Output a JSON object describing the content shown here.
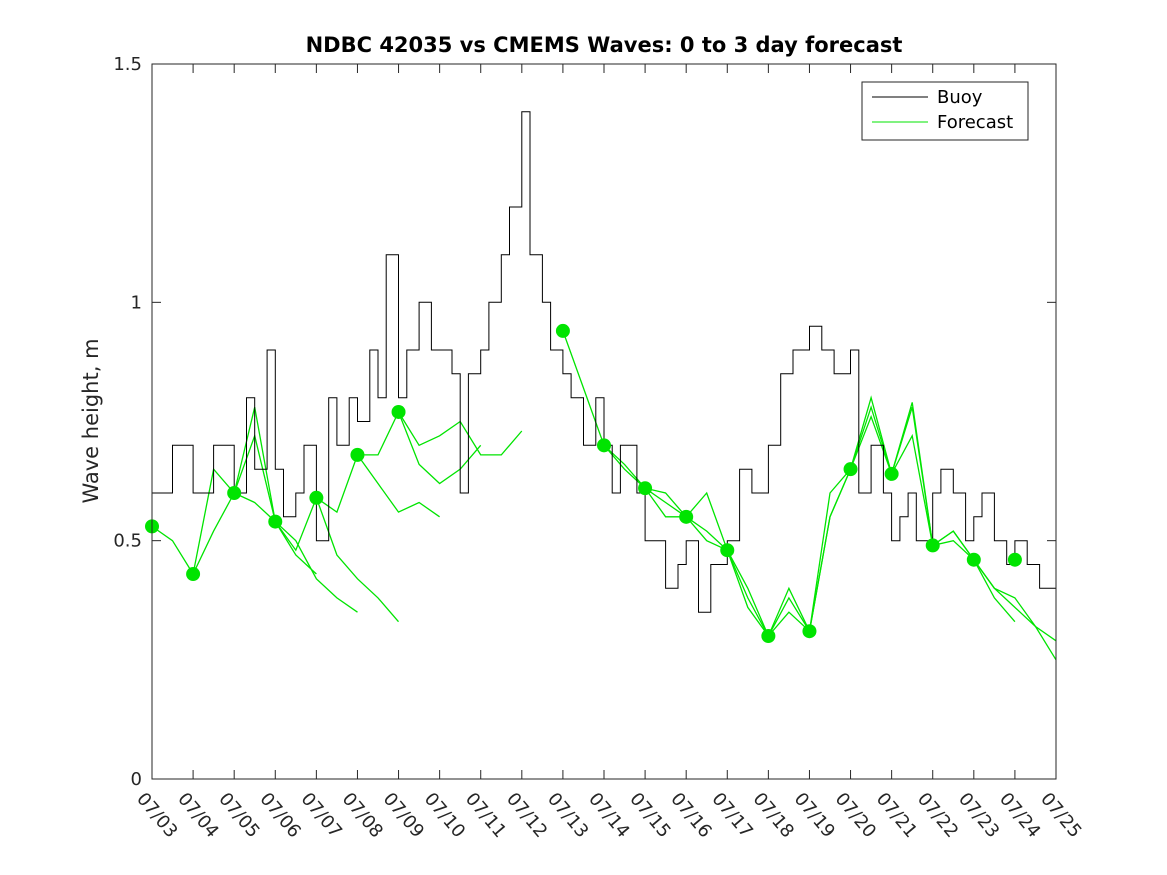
{
  "chart_data": {
    "type": "line",
    "title": "NDBC 42035 vs CMEMS Waves: 0 to 3 day forecast",
    "xlabel": "",
    "ylabel": "Wave height, m",
    "xlim": [
      "07/03",
      "07/25"
    ],
    "ylim": [
      0,
      1.5
    ],
    "yticks": [
      0,
      0.5,
      1,
      1.5
    ],
    "ytick_labels": [
      "0",
      "0.5",
      "1",
      "1.5"
    ],
    "xtick_labels": [
      "07/03",
      "07/04",
      "07/05",
      "07/06",
      "07/07",
      "07/08",
      "07/09",
      "07/10",
      "07/11",
      "07/12",
      "07/13",
      "07/14",
      "07/15",
      "07/16",
      "07/17",
      "07/18",
      "07/19",
      "07/20",
      "07/21",
      "07/22",
      "07/23",
      "07/24",
      "07/25"
    ],
    "grid": false,
    "legend": {
      "position": "top-right",
      "entries": [
        "Buoy",
        "Forecast"
      ]
    },
    "colors": {
      "buoy": "#000000",
      "forecast": "#00e400",
      "axis": "#262626"
    },
    "buoy": {
      "name": "Buoy",
      "x": [
        0,
        0.5,
        1,
        1.5,
        2,
        2.3,
        2.5,
        2.8,
        3,
        3.2,
        3.5,
        3.7,
        4,
        4.3,
        4.5,
        4.8,
        5,
        5.3,
        5.5,
        5.7,
        6,
        6.2,
        6.5,
        6.8,
        7,
        7.3,
        7.5,
        7.7,
        8,
        8.2,
        8.5,
        8.7,
        9,
        9.2,
        9.5,
        9.7,
        10,
        10.2,
        10.5,
        10.8,
        11,
        11.2,
        11.4,
        11.6,
        11.8,
        12,
        12.3,
        12.5,
        12.8,
        13,
        13.3,
        13.6,
        14,
        14.3,
        14.6,
        15,
        15.3,
        15.6,
        16,
        16.3,
        16.6,
        17,
        17.2,
        17.5,
        17.8,
        18,
        18.2,
        18.4,
        18.6,
        18.8,
        19,
        19.2,
        19.5,
        19.8,
        20,
        20.2,
        20.5,
        20.8,
        21,
        21.3,
        21.6,
        22
      ],
      "y": [
        0.6,
        0.7,
        0.6,
        0.7,
        0.6,
        0.8,
        0.65,
        0.9,
        0.65,
        0.55,
        0.6,
        0.7,
        0.5,
        0.8,
        0.7,
        0.8,
        0.75,
        0.9,
        0.8,
        1.1,
        0.8,
        0.9,
        1.0,
        0.9,
        0.9,
        0.85,
        0.6,
        0.85,
        0.9,
        1.0,
        1.1,
        1.2,
        1.4,
        1.1,
        1.0,
        0.9,
        0.85,
        0.8,
        0.7,
        0.8,
        0.7,
        0.6,
        0.7,
        0.7,
        0.6,
        0.5,
        0.5,
        0.4,
        0.45,
        0.5,
        0.35,
        0.45,
        0.5,
        0.65,
        0.6,
        0.7,
        0.85,
        0.9,
        0.95,
        0.9,
        0.85,
        0.9,
        0.6,
        0.7,
        0.6,
        0.5,
        0.55,
        0.6,
        0.5,
        0.5,
        0.6,
        0.65,
        0.6,
        0.5,
        0.55,
        0.6,
        0.5,
        0.45,
        0.5,
        0.45,
        0.4,
        0.4
      ]
    },
    "forecast_markers": {
      "name": "Forecast analysis points",
      "x": [
        0,
        1,
        2,
        3,
        4,
        5,
        6,
        10,
        11,
        12,
        13,
        14,
        15,
        16,
        17,
        18,
        19,
        20,
        21
      ],
      "y": [
        0.53,
        0.43,
        0.6,
        0.54,
        0.59,
        0.68,
        0.77,
        0.94,
        0.7,
        0.61,
        0.55,
        0.48,
        0.3,
        0.31,
        0.65,
        0.64,
        0.49,
        0.46,
        0.46
      ]
    },
    "forecast": [
      {
        "name": "",
        "x": [
          0,
          0.5,
          1,
          1.5,
          2,
          2.5,
          3
        ],
        "y": [
          0.53,
          0.5,
          0.43,
          0.52,
          0.6,
          0.58,
          0.54
        ]
      },
      {
        "name": "",
        "x": [
          1,
          1.5,
          2,
          2.5,
          3,
          3.5,
          4
        ],
        "y": [
          0.43,
          0.65,
          0.6,
          0.72,
          0.54,
          0.47,
          0.43
        ]
      },
      {
        "name": "",
        "x": [
          2,
          2.5,
          3,
          3.5,
          4,
          4.5,
          5
        ],
        "y": [
          0.6,
          0.78,
          0.54,
          0.5,
          0.42,
          0.38,
          0.35
        ]
      },
      {
        "name": "",
        "x": [
          3,
          3.5,
          4,
          4.5,
          5,
          5.5,
          6
        ],
        "y": [
          0.54,
          0.48,
          0.59,
          0.47,
          0.42,
          0.38,
          0.33
        ]
      },
      {
        "name": "",
        "x": [
          4,
          4.5,
          5,
          5.5,
          6,
          6.5,
          7
        ],
        "y": [
          0.59,
          0.56,
          0.68,
          0.62,
          0.56,
          0.58,
          0.55
        ]
      },
      {
        "name": "",
        "x": [
          5,
          5.5,
          6,
          6.5,
          7,
          7.5,
          8
        ],
        "y": [
          0.68,
          0.68,
          0.77,
          0.66,
          0.62,
          0.65,
          0.7
        ]
      },
      {
        "name": "",
        "x": [
          6,
          6.5,
          7,
          7.5,
          8,
          8.5,
          9
        ],
        "y": [
          0.77,
          0.7,
          0.72,
          0.75,
          0.68,
          0.68,
          0.73
        ]
      },
      {
        "name": "",
        "x": [
          10,
          10.5,
          11,
          11.5,
          12,
          12.5,
          13
        ],
        "y": [
          0.94,
          0.82,
          0.7,
          0.65,
          0.61,
          0.58,
          0.55
        ]
      },
      {
        "name": "",
        "x": [
          11,
          11.5,
          12,
          12.5,
          13,
          13.5,
          14
        ],
        "y": [
          0.7,
          0.66,
          0.61,
          0.6,
          0.55,
          0.5,
          0.48
        ]
      },
      {
        "name": "",
        "x": [
          12,
          12.5,
          13,
          13.5,
          14,
          14.5,
          15
        ],
        "y": [
          0.61,
          0.55,
          0.55,
          0.52,
          0.48,
          0.4,
          0.3
        ]
      },
      {
        "name": "",
        "x": [
          13,
          13.5,
          14,
          14.5,
          15,
          15.5,
          16
        ],
        "y": [
          0.55,
          0.6,
          0.48,
          0.36,
          0.3,
          0.4,
          0.31
        ]
      },
      {
        "name": "",
        "x": [
          14,
          14.5,
          15,
          15.5,
          16,
          16.5,
          17
        ],
        "y": [
          0.48,
          0.38,
          0.3,
          0.38,
          0.31,
          0.55,
          0.65
        ]
      },
      {
        "name": "",
        "x": [
          15,
          15.5,
          16,
          16.5,
          17,
          17.5,
          18
        ],
        "y": [
          0.3,
          0.35,
          0.31,
          0.6,
          0.65,
          0.78,
          0.64
        ]
      },
      {
        "name": "",
        "x": [
          16,
          16.5,
          17,
          17.5,
          18,
          18.5,
          19
        ],
        "y": [
          0.31,
          0.55,
          0.65,
          0.8,
          0.64,
          0.72,
          0.49
        ]
      },
      {
        "name": "",
        "x": [
          17,
          17.5,
          18,
          18.5,
          19,
          19.5,
          20
        ],
        "y": [
          0.65,
          0.76,
          0.64,
          0.79,
          0.49,
          0.52,
          0.46
        ]
      },
      {
        "name": "",
        "x": [
          18,
          18.5,
          19,
          19.5,
          20,
          20.5,
          21
        ],
        "y": [
          0.64,
          0.78,
          0.49,
          0.5,
          0.46,
          0.38,
          0.33
        ]
      },
      {
        "name": "",
        "x": [
          19,
          19.5,
          20,
          20.5,
          21,
          21.5,
          22
        ],
        "y": [
          0.49,
          0.52,
          0.46,
          0.4,
          0.36,
          0.32,
          0.25
        ]
      },
      {
        "name": "",
        "x": [
          20,
          20.5,
          21,
          21.5,
          22
        ],
        "y": [
          0.46,
          0.4,
          0.38,
          0.32,
          0.29
        ]
      }
    ]
  }
}
